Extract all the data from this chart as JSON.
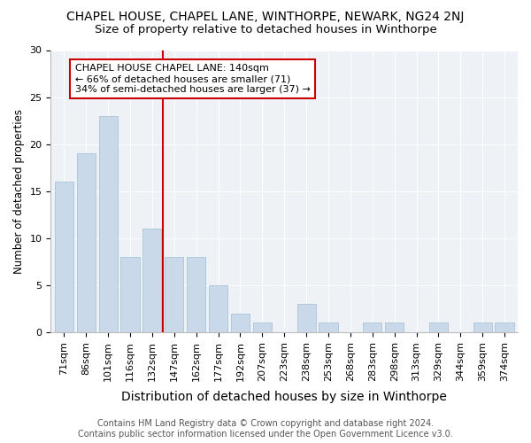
{
  "title": "CHAPEL HOUSE, CHAPEL LANE, WINTHORPE, NEWARK, NG24 2NJ",
  "subtitle": "Size of property relative to detached houses in Winthorpe",
  "xlabel": "Distribution of detached houses by size in Winthorpe",
  "ylabel": "Number of detached properties",
  "categories": [
    "71sqm",
    "86sqm",
    "101sqm",
    "116sqm",
    "132sqm",
    "147sqm",
    "162sqm",
    "177sqm",
    "192sqm",
    "207sqm",
    "223sqm",
    "238sqm",
    "253sqm",
    "268sqm",
    "283sqm",
    "298sqm",
    "313sqm",
    "329sqm",
    "344sqm",
    "359sqm",
    "374sqm"
  ],
  "values": [
    16,
    19,
    23,
    8,
    11,
    8,
    8,
    5,
    2,
    1,
    0,
    3,
    1,
    0,
    1,
    1,
    0,
    1,
    0,
    1,
    1
  ],
  "bar_color": "#c9d9ea",
  "bar_edge_color": "#a8c4d8",
  "vline_x": 4.5,
  "vline_color": "#cc0000",
  "annotation_text": "CHAPEL HOUSE CHAPEL LANE: 140sqm\n← 66% of detached houses are smaller (71)\n34% of semi-detached houses are larger (37) →",
  "annotation_box_color": "#ffffff",
  "annotation_box_edge_color": "#cc0000",
  "ylim": [
    0,
    30
  ],
  "yticks": [
    0,
    5,
    10,
    15,
    20,
    25,
    30
  ],
  "footer_line1": "Contains HM Land Registry data © Crown copyright and database right 2024.",
  "footer_line2": "Contains public sector information licensed under the Open Government Licence v3.0.",
  "background_color": "#eef2f7",
  "title_fontsize": 10,
  "subtitle_fontsize": 9.5,
  "xlabel_fontsize": 10,
  "ylabel_fontsize": 8.5,
  "tick_fontsize": 8,
  "annotation_fontsize": 8,
  "footer_fontsize": 7
}
